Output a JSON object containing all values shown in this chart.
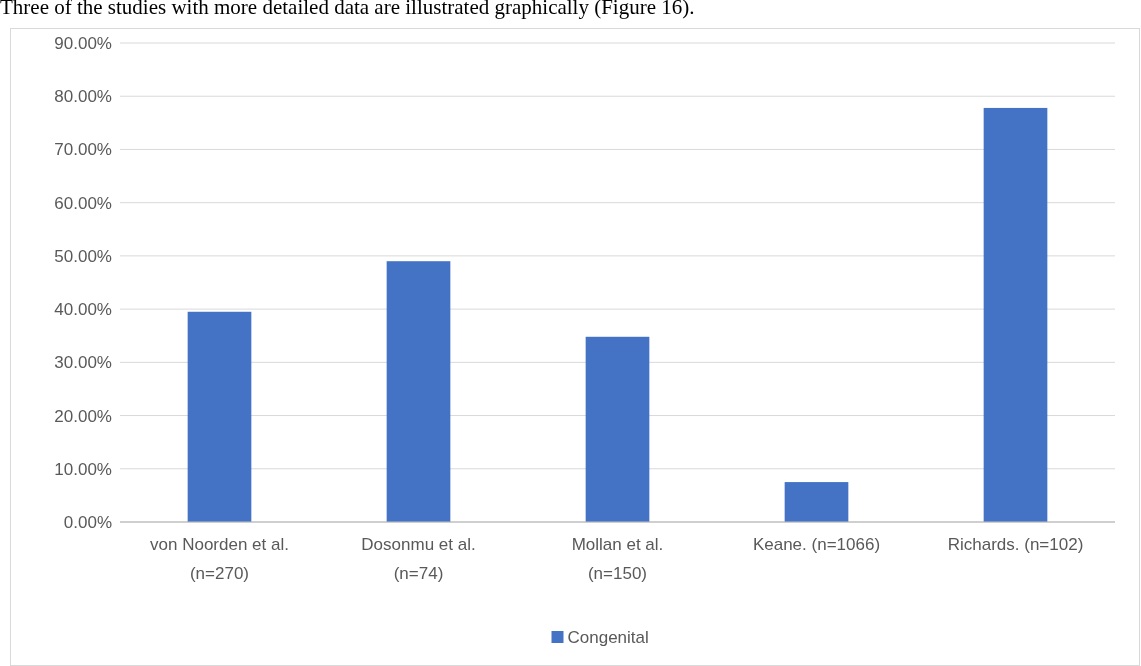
{
  "chart_data": {
    "type": "bar",
    "annotations": [
      "Three of the studies with more detailed data are illustrated graphically (Figure 16)."
    ],
    "categories": [
      "von Noorden et al. (n=270)",
      "Dosonmu et al. (n=74)",
      "Mollan et al. (n=150)",
      "Keane. (n=1066)",
      "Richards. (n=102)"
    ],
    "series": [
      {
        "name": "Congenital",
        "color": "#4472c4",
        "values": [
          39.5,
          49,
          34.8,
          7.5,
          77.8
        ]
      }
    ],
    "ylim": [
      0,
      90
    ],
    "yticks": [
      {
        "value": 0,
        "label": "0.00%"
      },
      {
        "value": 10,
        "label": "10.00%"
      },
      {
        "value": 20,
        "label": "20.00%"
      },
      {
        "value": 30,
        "label": "30.00%"
      },
      {
        "value": 40,
        "label": "40.00%"
      },
      {
        "value": 50,
        "label": "50.00%"
      },
      {
        "value": 60,
        "label": "60.00%"
      },
      {
        "value": 70,
        "label": "70.00%"
      },
      {
        "value": 80,
        "label": "80.00%"
      },
      {
        "value": 90,
        "label": "90.00%"
      }
    ],
    "grid": "y",
    "legend": "bottom"
  }
}
